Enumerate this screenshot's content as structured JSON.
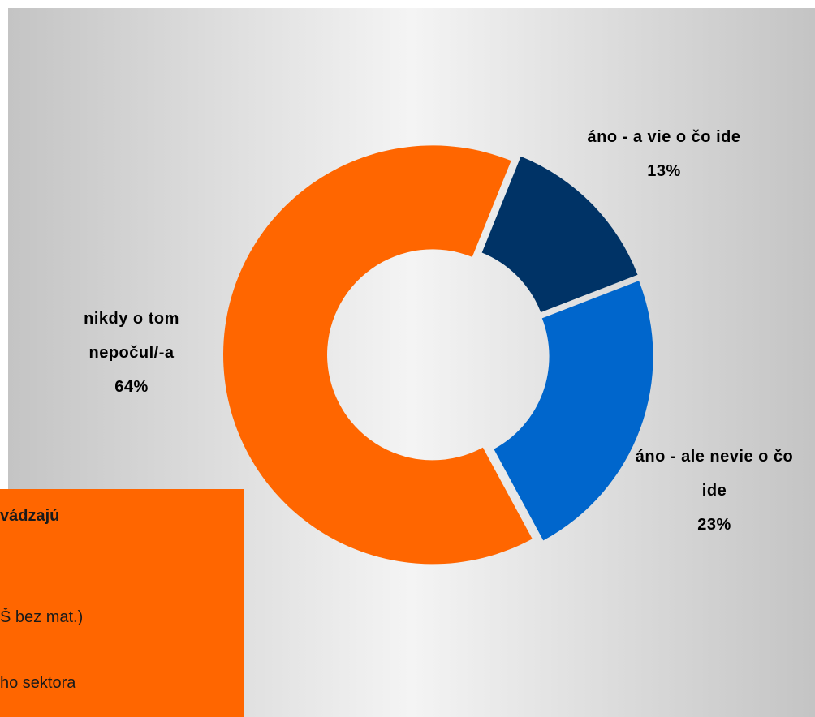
{
  "chart_data": {
    "type": "pie",
    "donut": true,
    "categories": [
      "áno - a vie o čo ide",
      "áno - ale nevie o čo ide",
      "nikdy o tom nepočul/-a"
    ],
    "values": [
      13,
      23,
      64
    ],
    "value_labels": [
      "13%",
      "23%",
      "64%"
    ],
    "colors": [
      "#003366",
      "#0066cc",
      "#ff6600"
    ]
  },
  "note_box": {
    "lines": [
      "vádzajú",
      "Š bez mat.)",
      "ho sektora"
    ]
  }
}
